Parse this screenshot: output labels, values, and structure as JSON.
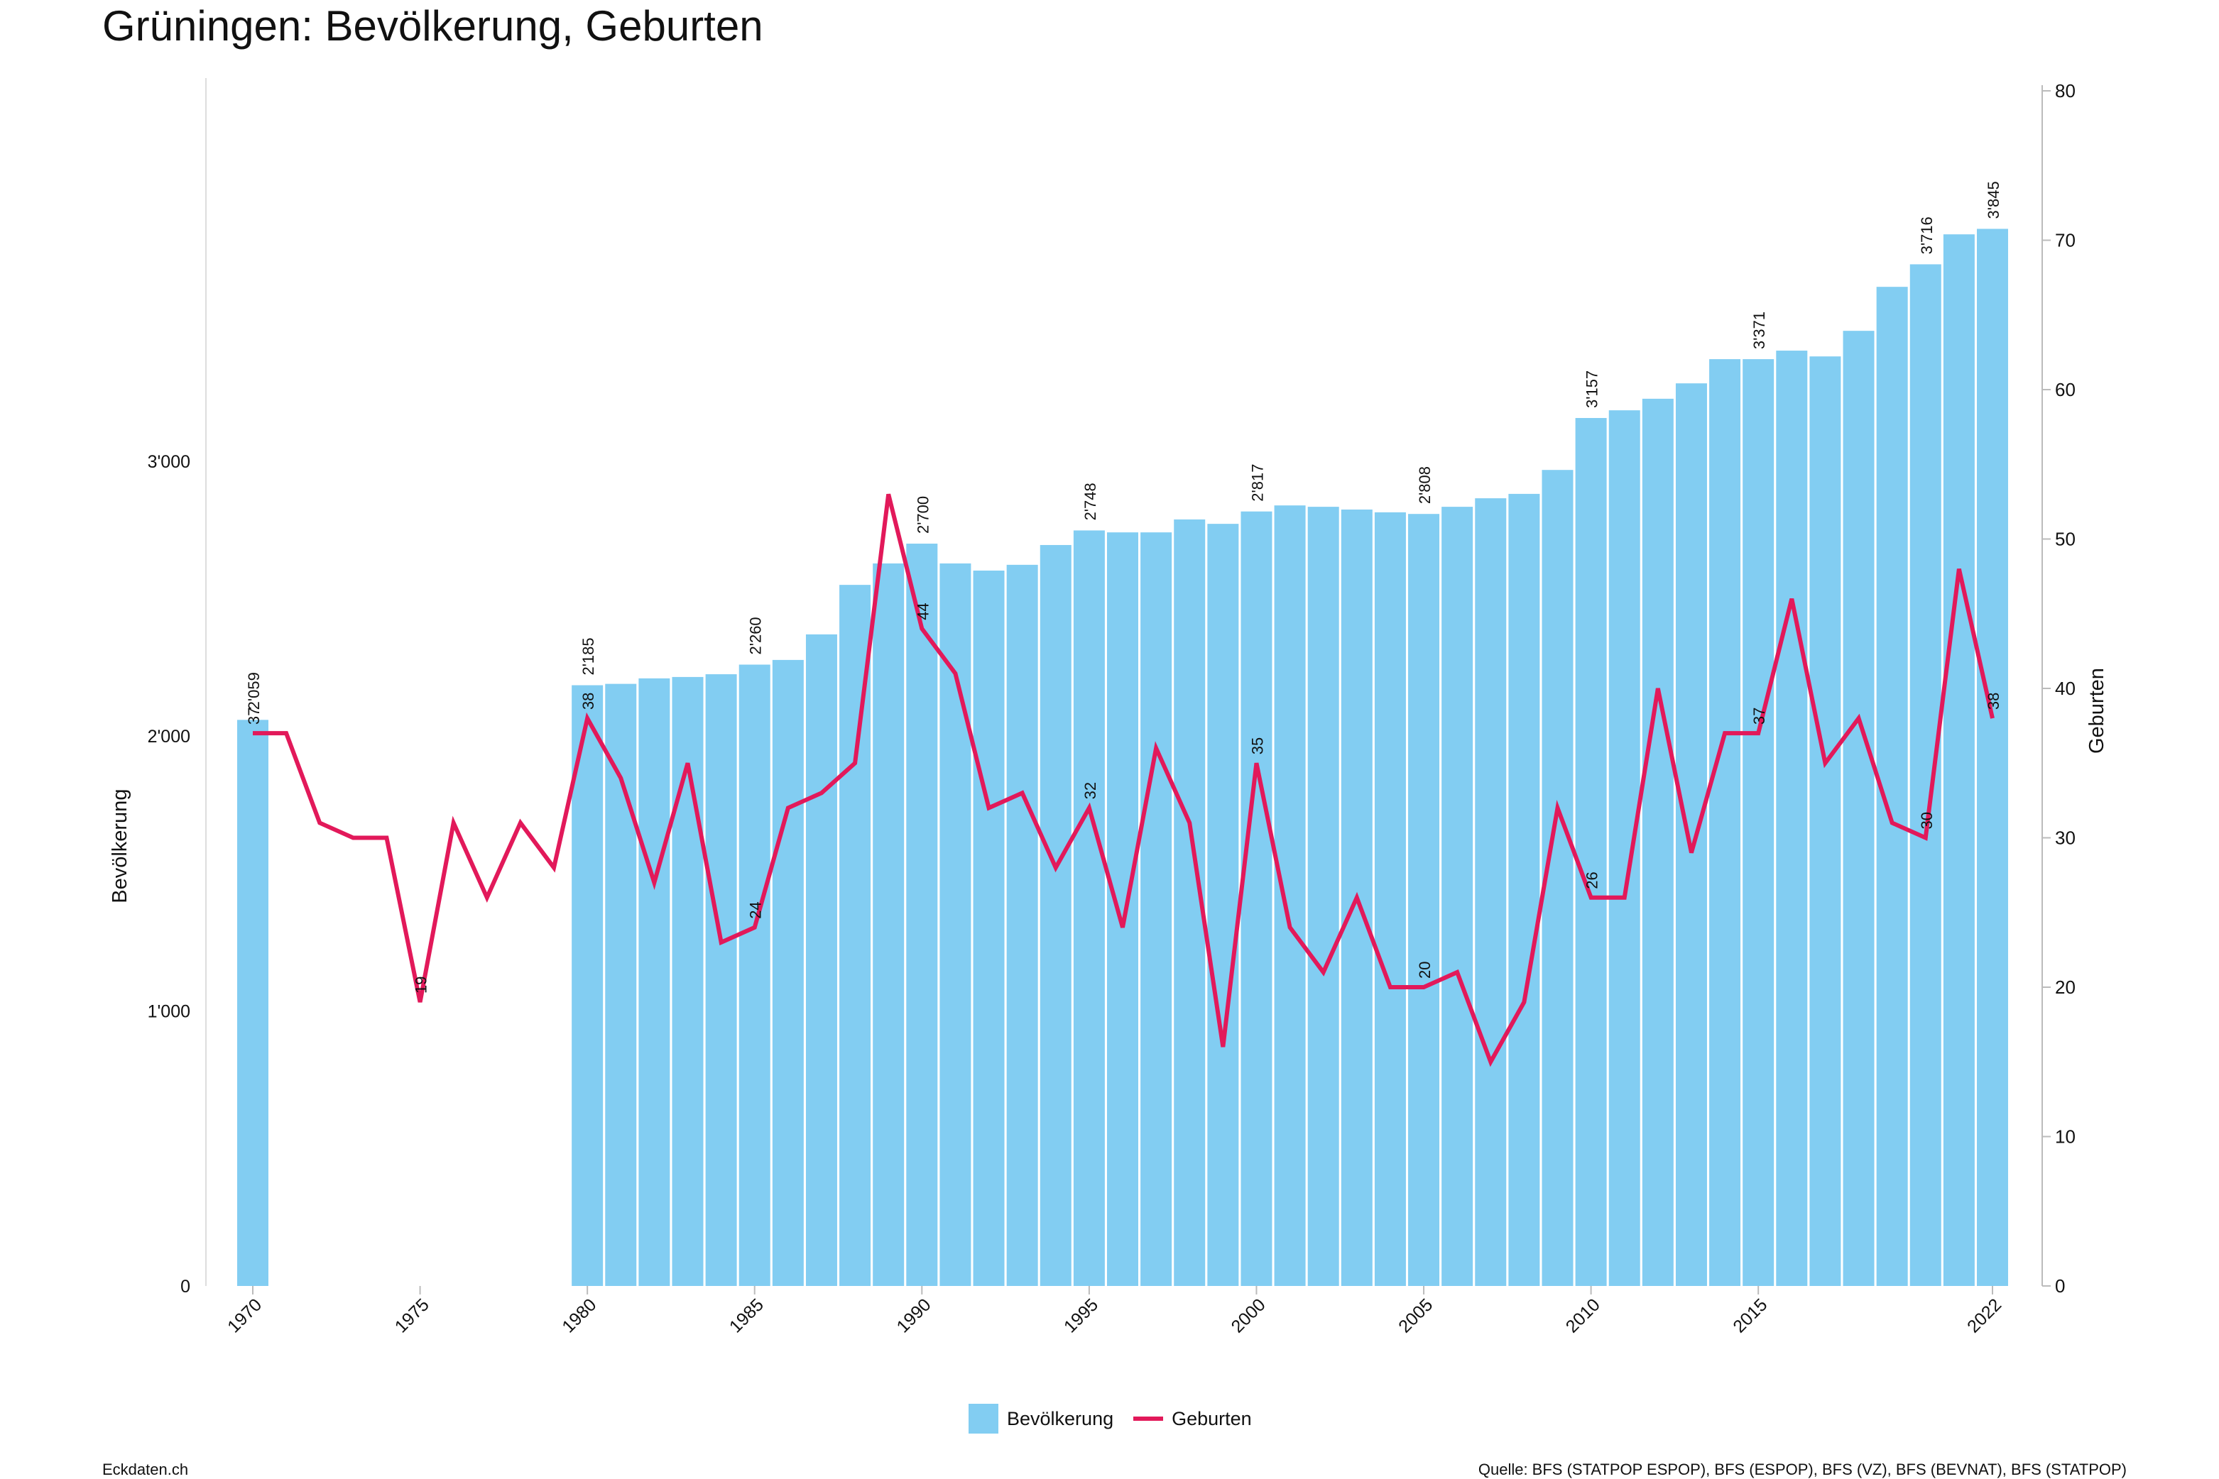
{
  "title": "Grüningen: Bevölkerung, Geburten",
  "footer": {
    "left": "Eckdaten.ch",
    "right": "Quelle: BFS (STATPOP ESPOP), BFS (ESPOP), BFS (VZ), BFS (BEVNAT), BFS (STATPOP)"
  },
  "colors": {
    "bars": "#82cdf2",
    "line": "#e2195a"
  },
  "chart_data": {
    "type": "bar+line",
    "title": "Grüningen: Bevölkerung, Geburten",
    "ylabel": "Bevölkerung",
    "y2label": "Geburten",
    "ylim": [
      0,
      4400
    ],
    "y2lim": [
      0,
      80
    ],
    "yticks": [
      "0",
      "1'000",
      "2'000",
      "3'000"
    ],
    "yticks_values": [
      0,
      1000,
      2000,
      3000
    ],
    "y2ticks": [
      0,
      10,
      20,
      30,
      40,
      50,
      60,
      70,
      80
    ],
    "xticks": [
      "1970",
      "1975",
      "1980",
      "1985",
      "1990",
      "1995",
      "2000",
      "2005",
      "2010",
      "2015",
      "2022"
    ],
    "legend": [
      "Bevölkerung",
      "Geburten"
    ],
    "legend_position": "bottom-center",
    "series": [
      {
        "name": "Bevölkerung",
        "type": "bar",
        "x": [
          1970,
          1980,
          1981,
          1982,
          1983,
          1984,
          1985,
          1986,
          1987,
          1988,
          1989,
          1990,
          1991,
          1992,
          1993,
          1994,
          1995,
          1996,
          1997,
          1998,
          1999,
          2000,
          2001,
          2002,
          2003,
          2004,
          2005,
          2006,
          2007,
          2008,
          2009,
          2010,
          2011,
          2012,
          2013,
          2014,
          2015,
          2016,
          2017,
          2018,
          2019,
          2020,
          2021,
          2022
        ],
        "values": [
          2059,
          2185,
          2190,
          2210,
          2215,
          2225,
          2260,
          2277,
          2370,
          2550,
          2628,
          2700,
          2628,
          2602,
          2623,
          2695,
          2748,
          2741,
          2741,
          2788,
          2772,
          2817,
          2839,
          2834,
          2824,
          2814,
          2808,
          2834,
          2865,
          2881,
          2968,
          3157,
          3185,
          3227,
          3283,
          3371,
          3371,
          3402,
          3381,
          3474,
          3634,
          3716,
          3825,
          3845
        ],
        "labels": {
          "1970": "2'059",
          "1980": "2'185",
          "1985": "2'260",
          "1990": "2'700",
          "1995": "2'748",
          "2000": "2'817",
          "2005": "2'808",
          "2010": "3'157",
          "2015": "3'371",
          "2020": "3'716",
          "2022": "3'845"
        }
      },
      {
        "name": "Geburten",
        "type": "line",
        "x": [
          1970,
          1971,
          1972,
          1973,
          1974,
          1975,
          1976,
          1977,
          1978,
          1979,
          1980,
          1981,
          1982,
          1983,
          1984,
          1985,
          1986,
          1987,
          1988,
          1989,
          1990,
          1991,
          1992,
          1993,
          1994,
          1995,
          1996,
          1997,
          1998,
          1999,
          2000,
          2001,
          2002,
          2003,
          2004,
          2005,
          2006,
          2007,
          2008,
          2009,
          2010,
          2011,
          2012,
          2013,
          2014,
          2015,
          2016,
          2017,
          2018,
          2019,
          2020,
          2021,
          2022
        ],
        "values": [
          37,
          37,
          31,
          30,
          30,
          19,
          31,
          26,
          31,
          28,
          38,
          34,
          27,
          35,
          23,
          24,
          32,
          33,
          35,
          53,
          44,
          41,
          32,
          33,
          28,
          32,
          24,
          36,
          31,
          16,
          35,
          24,
          21,
          26,
          20,
          20,
          21,
          15,
          19,
          32,
          26,
          26,
          40,
          29,
          37,
          37,
          46,
          35,
          38,
          31,
          30,
          48,
          38
        ],
        "labels": {
          "1970": "37",
          "1975": "19",
          "1980": "38",
          "1985": "24",
          "1990": "44",
          "1995": "32",
          "2000": "35",
          "2005": "20",
          "2010": "26",
          "2015": "37",
          "2020": "30",
          "2022": "38"
        }
      }
    ]
  }
}
